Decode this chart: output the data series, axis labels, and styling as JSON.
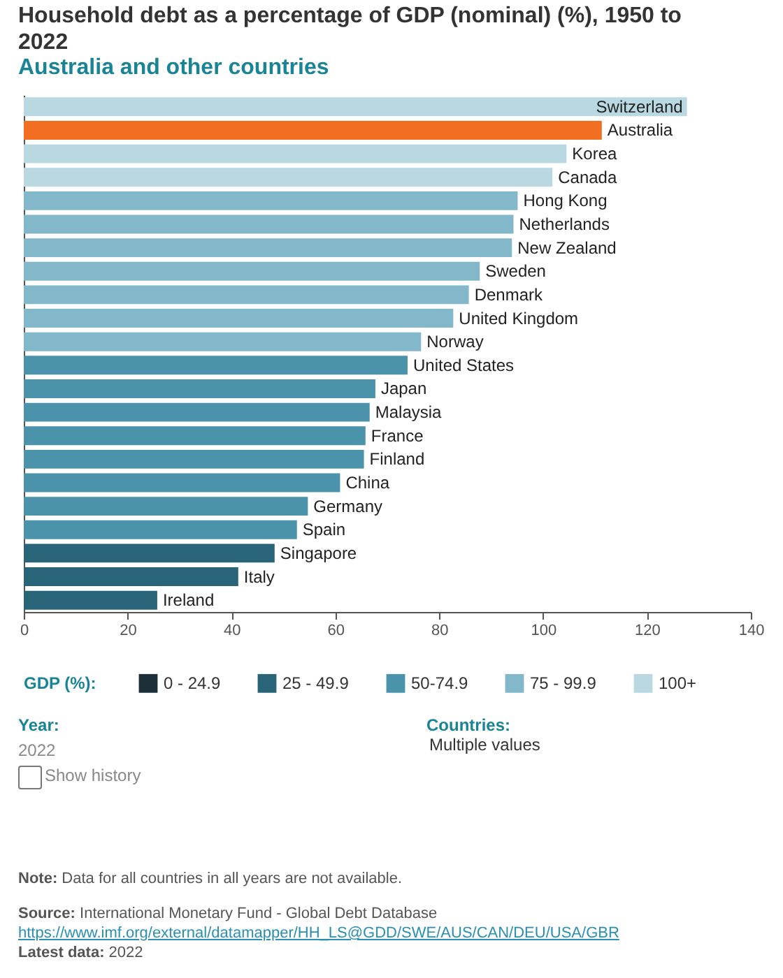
{
  "chart_data": {
    "type": "bar",
    "orientation": "horizontal",
    "title": "Household debt as a percentage of GDP (nominal) (%), 1950 to 2022",
    "subtitle": "Australia and other countries",
    "categories": [
      "Switzerland",
      "Australia",
      "Korea",
      "Canada",
      "Hong Kong",
      "Netherlands",
      "New Zealand",
      "Sweden",
      "Denmark",
      "United Kingdom",
      "Norway",
      "United States",
      "Japan",
      "Malaysia",
      "France",
      "Finland",
      "China",
      "Germany",
      "Spain",
      "Singapore",
      "Italy",
      "Ireland"
    ],
    "series": [
      {
        "name": "0 - 24.9",
        "color": "#1d2f38",
        "values": [
          null,
          null,
          null,
          null,
          null,
          null,
          null,
          null,
          null,
          null,
          null,
          null,
          null,
          null,
          null,
          null,
          null,
          null,
          null,
          null,
          null,
          null
        ]
      },
      {
        "name": "25 - 49.9",
        "color": "#2a6478",
        "values": [
          null,
          null,
          null,
          null,
          null,
          null,
          null,
          null,
          null,
          null,
          null,
          null,
          null,
          null,
          null,
          null,
          null,
          null,
          null,
          48.3,
          41.3,
          25.7
        ]
      },
      {
        "name": "50-74.9",
        "color": "#4a93ab",
        "values": [
          null,
          null,
          null,
          null,
          null,
          null,
          null,
          null,
          null,
          null,
          null,
          73.9,
          67.7,
          66.6,
          65.8,
          65.5,
          60.9,
          54.7,
          52.6,
          null,
          null,
          null
        ]
      },
      {
        "name": "75 - 99.9",
        "color": "#82b8ca",
        "values": [
          null,
          null,
          null,
          null,
          95.1,
          94.3,
          94.0,
          87.8,
          85.7,
          82.7,
          76.5,
          null,
          null,
          null,
          null,
          null,
          null,
          null,
          null,
          null,
          null,
          null
        ]
      },
      {
        "name": "100+",
        "color": "#b9d8e1",
        "values": [
          127.7,
          null,
          104.5,
          101.8,
          null,
          null,
          null,
          null,
          null,
          null,
          null,
          null,
          null,
          null,
          null,
          null,
          null,
          null,
          null,
          null,
          null,
          null
        ]
      },
      {
        "color": "#f26f22",
        "values": [
          null,
          111.3,
          null,
          null,
          null,
          null,
          null,
          null,
          null,
          null,
          null,
          null,
          null,
          null,
          null,
          null,
          null,
          null,
          null,
          null,
          null,
          null
        ]
      }
    ],
    "xlim": [
      0,
      140
    ],
    "xticks": [
      0,
      20,
      40,
      60,
      80,
      100,
      120,
      140
    ],
    "tick_labels": "x",
    "legend": "bottom",
    "legend_title": "GDP (%):",
    "annotations": [
      "Year:",
      "2022",
      "Show history",
      "Countries:",
      "Multiple values",
      "Note: Data for all countries in all years are not available.",
      "Source: International Monetary Fund - Global Debt Database",
      "https://www.imf.org/external/datamapper/HH_LS@GDD/SWE/AUS/CAN/DEU/USA/GBR",
      "Latest data: 2022"
    ]
  }
}
